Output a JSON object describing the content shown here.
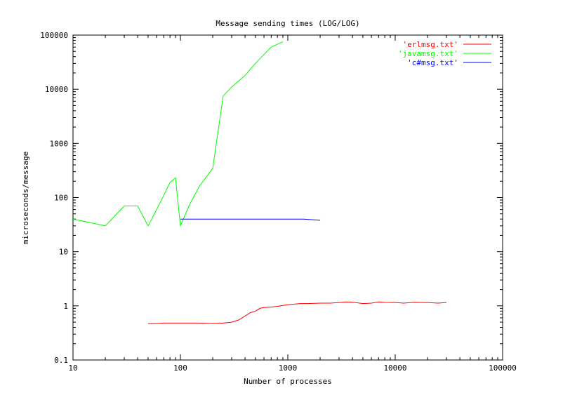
{
  "chart_data": {
    "type": "line",
    "title": "Message sending times (LOG/LOG)",
    "xlabel": "Number of processes",
    "ylabel": "microseconds/message",
    "x_scale": "log",
    "y_scale": "log",
    "xlim": [
      10,
      100000
    ],
    "ylim": [
      0.1,
      100000
    ],
    "x_ticks": [
      "10",
      "100",
      "1000",
      "10000",
      "100000"
    ],
    "y_ticks": [
      "0.1",
      "1",
      "10",
      "100",
      "1000",
      "10000",
      "100000"
    ],
    "grid": false,
    "legend_position": "top-right",
    "series": [
      {
        "name": "'erlmsg.txt'",
        "color": "#ff0000",
        "x": [
          50,
          60,
          70,
          80,
          100,
          150,
          200,
          250,
          300,
          350,
          400,
          450,
          500,
          550,
          600,
          700,
          800,
          1000,
          1300,
          1500,
          2000,
          2500,
          3000,
          3500,
          4000,
          5000,
          6000,
          7000,
          8000,
          10000,
          12000,
          15000,
          20000,
          25000,
          30000
        ],
        "y": [
          0.47,
          0.47,
          0.48,
          0.48,
          0.48,
          0.48,
          0.47,
          0.48,
          0.5,
          0.55,
          0.65,
          0.75,
          0.8,
          0.9,
          0.93,
          0.95,
          0.98,
          1.05,
          1.1,
          1.1,
          1.12,
          1.12,
          1.15,
          1.18,
          1.17,
          1.1,
          1.12,
          1.18,
          1.16,
          1.15,
          1.12,
          1.16,
          1.15,
          1.12,
          1.15
        ]
      },
      {
        "name": "'javamsg.txt'",
        "color": "#00ff00",
        "x": [
          10,
          20,
          30,
          40,
          50,
          60,
          70,
          80,
          90,
          100,
          120,
          150,
          200,
          250,
          300,
          400,
          500,
          700,
          900
        ],
        "y": [
          40,
          30,
          70,
          70,
          30,
          60,
          110,
          190,
          230,
          30,
          70,
          160,
          350,
          7500,
          11000,
          18000,
          30000,
          60000,
          75000
        ]
      },
      {
        "name": "'c#msg.txt'",
        "color": "#0000ff",
        "x": [
          100,
          200,
          500,
          1000,
          1400,
          2000
        ],
        "y": [
          40,
          40,
          40,
          40,
          40,
          38
        ]
      }
    ]
  }
}
